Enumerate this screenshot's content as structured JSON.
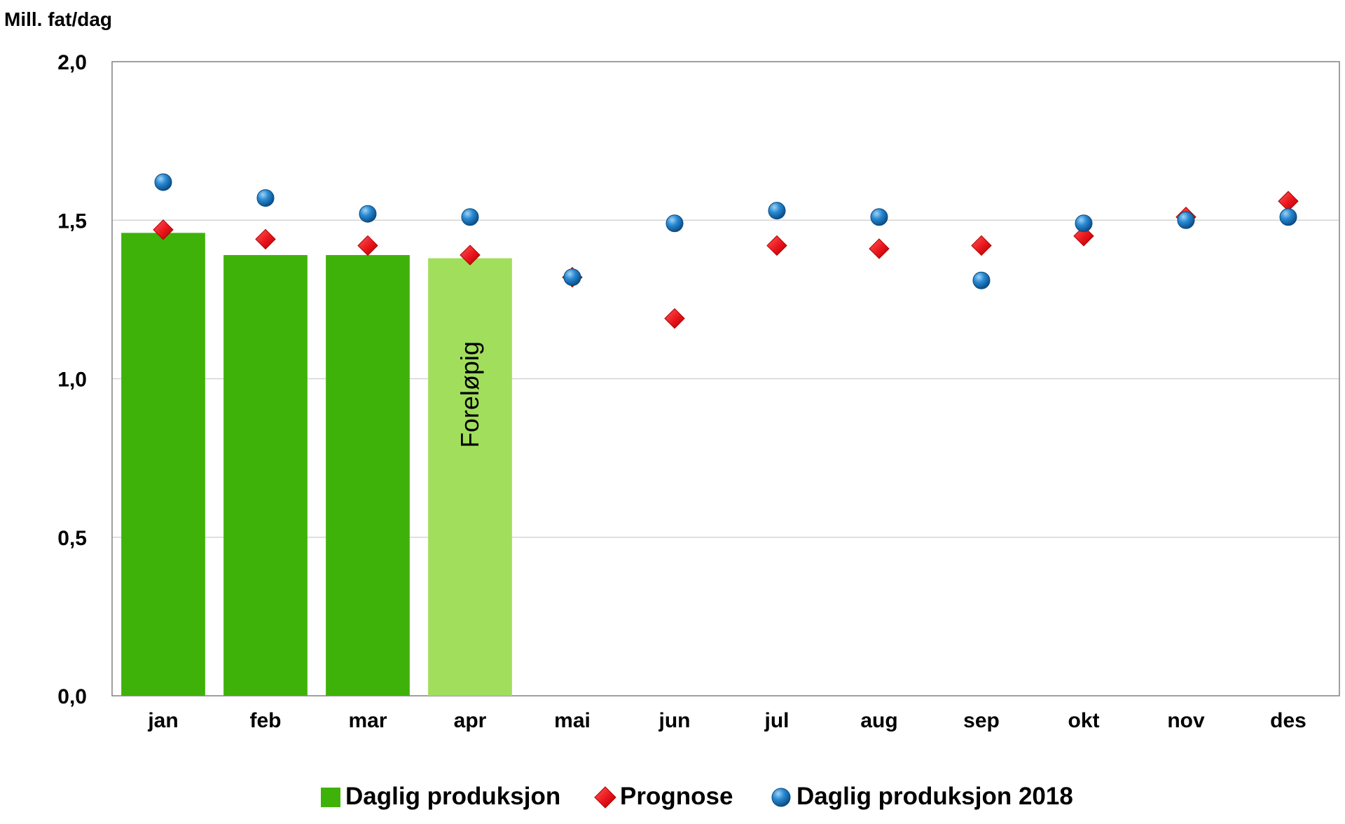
{
  "chart_data": {
    "type": "bar",
    "ylabel": "Mill. fat/dag",
    "ylim": [
      0,
      2
    ],
    "yticks": [
      "0,0",
      "0,5",
      "1,0",
      "1,5",
      "2,0"
    ],
    "categories": [
      "jan",
      "feb",
      "mar",
      "apr",
      "mai",
      "jun",
      "jul",
      "aug",
      "sep",
      "okt",
      "nov",
      "des"
    ],
    "grid": true,
    "legend_position": "bottom",
    "series": [
      {
        "name": "Daglig produksjon",
        "kind": "bar",
        "values": [
          1.46,
          1.39,
          1.39,
          1.38,
          null,
          null,
          null,
          null,
          null,
          null,
          null,
          null
        ],
        "colors": [
          "#3fb20a",
          "#3fb20a",
          "#3fb20a",
          "#a1de5c"
        ]
      },
      {
        "name": "Prognose",
        "kind": "marker",
        "marker": "diamond",
        "color": "#e8141b",
        "values": [
          1.47,
          1.44,
          1.42,
          1.39,
          1.32,
          1.19,
          1.42,
          1.41,
          1.42,
          1.45,
          1.51,
          1.56
        ]
      },
      {
        "name": "Daglig produksjon 2018",
        "kind": "marker",
        "marker": "circle",
        "color": "#1f7fc4",
        "values": [
          1.62,
          1.57,
          1.52,
          1.51,
          1.32,
          1.49,
          1.53,
          1.51,
          1.31,
          1.49,
          1.5,
          1.51
        ]
      }
    ],
    "annotations": [
      {
        "text": "Foreløpig",
        "category": "apr",
        "rotation": -90
      }
    ]
  }
}
